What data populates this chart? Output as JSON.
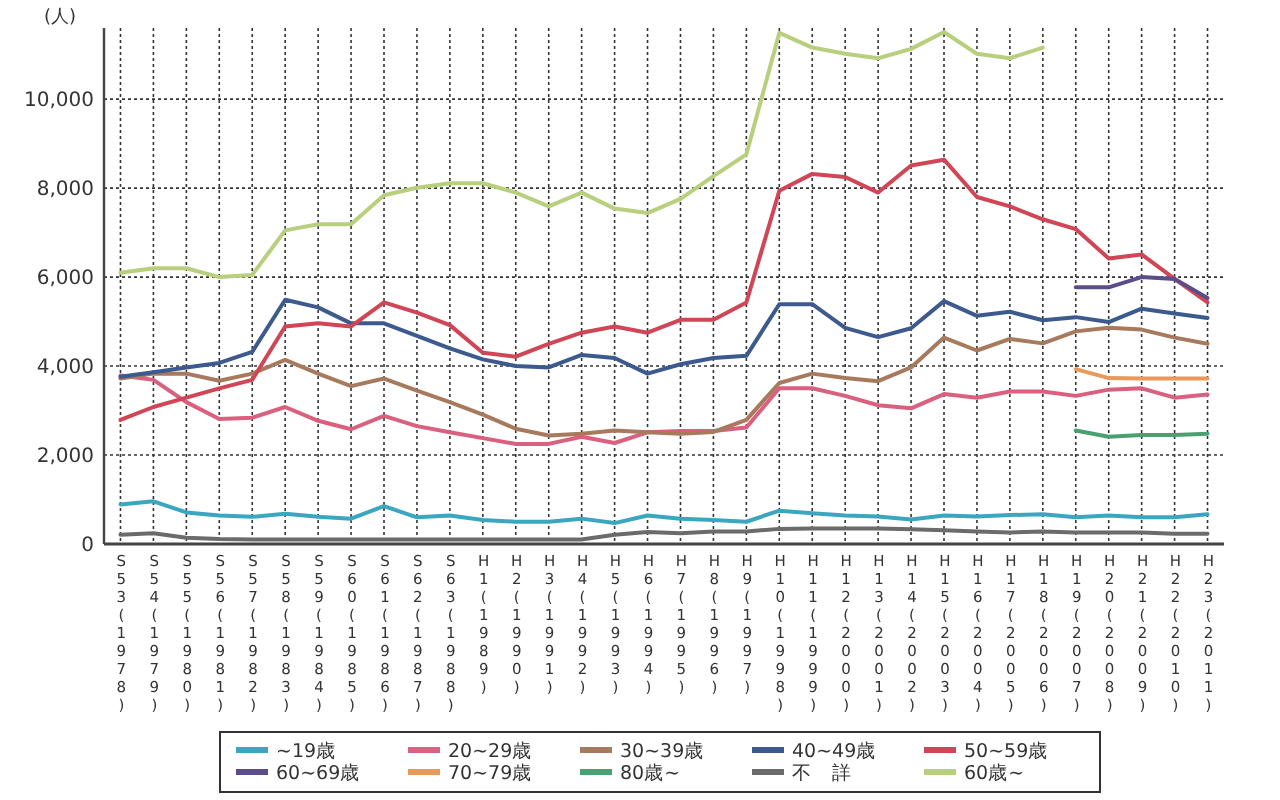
{
  "chart_data": {
    "type": "line",
    "ylabel": "(人)",
    "categories": [
      "S53(1978)",
      "S54(1979)",
      "S55(1980)",
      "S56(1981)",
      "S57(1982)",
      "S58(1983)",
      "S59(1984)",
      "S60(1985)",
      "S61(1986)",
      "S62(1987)",
      "S63(1988)",
      "H1(1989)",
      "H2(1990)",
      "H3(1991)",
      "H4(1992)",
      "H5(1993)",
      "H6(1994)",
      "H7(1995)",
      "H8(1996)",
      "H9(1997)",
      "H10(1998)",
      "H11(1999)",
      "H12(2000)",
      "H13(2001)",
      "H14(2002)",
      "H15(2003)",
      "H16(2004)",
      "H17(2005)",
      "H18(2006)",
      "H19(2007)",
      "H20(2008)",
      "H21(2009)",
      "H22(2010)",
      "H23(2011)"
    ],
    "ylim": [
      0,
      11600
    ],
    "yticks": [
      0,
      {
        "value": 2000,
        "label": "2,000"
      },
      {
        "value": 4000,
        "label": "4,000"
      },
      {
        "value": 6000,
        "label": "6,000"
      },
      {
        "value": 8000,
        "label": "8,000"
      },
      {
        "value": 10000,
        "label": "10,000"
      }
    ],
    "grid": true,
    "legend": "bottom",
    "line_style": "solid",
    "marker": "none",
    "series": [
      {
        "name": "~19歳",
        "color": "#3aa6c0",
        "values": [
          890,
          960,
          710,
          640,
          610,
          680,
          610,
          570,
          850,
          600,
          640,
          540,
          500,
          500,
          570,
          470,
          640,
          570,
          540,
          500,
          750,
          690,
          640,
          620,
          550,
          640,
          620,
          650,
          670,
          600,
          640,
          600,
          600,
          670
        ]
      },
      {
        "name": "20~29歳",
        "color": "#d9607f",
        "values": [
          3790,
          3690,
          3190,
          2810,
          2840,
          3080,
          2770,
          2580,
          2880,
          2650,
          2510,
          2380,
          2250,
          2250,
          2410,
          2270,
          2510,
          2540,
          2540,
          2620,
          3500,
          3500,
          3330,
          3120,
          3050,
          3370,
          3290,
          3430,
          3430,
          3330,
          3470,
          3500,
          3290,
          3360
        ]
      },
      {
        "name": "30~39歳",
        "color": "#a77a5e",
        "values": [
          3720,
          3830,
          3830,
          3670,
          3830,
          4140,
          3830,
          3550,
          3720,
          3450,
          3190,
          2910,
          2590,
          2440,
          2480,
          2550,
          2510,
          2480,
          2520,
          2790,
          3620,
          3830,
          3730,
          3660,
          3970,
          4640,
          4350,
          4610,
          4510,
          4780,
          4860,
          4820,
          4640,
          4500
        ]
      },
      {
        "name": "40~49歳",
        "color": "#3d5a8f",
        "values": [
          3760,
          3860,
          3970,
          4070,
          4320,
          5490,
          5320,
          4960,
          4960,
          4680,
          4400,
          4150,
          4000,
          3970,
          4250,
          4180,
          3830,
          4040,
          4180,
          4230,
          5390,
          5390,
          4860,
          4650,
          4850,
          5460,
          5130,
          5220,
          5030,
          5100,
          4990,
          5290,
          5180,
          5080
        ]
      },
      {
        "name": "50~59歳",
        "color": "#d04656",
        "values": [
          2790,
          3080,
          3290,
          3500,
          3690,
          4890,
          4960,
          4890,
          5430,
          5200,
          4920,
          4300,
          4210,
          4500,
          4750,
          4890,
          4750,
          5040,
          5040,
          5430,
          7940,
          8320,
          8250,
          7900,
          8510,
          8640,
          7800,
          7590,
          7300,
          7080,
          6420,
          6510,
          5960,
          5430
        ]
      },
      {
        "name": "60~69歳",
        "color": "#5c4d8a",
        "values": [
          null,
          null,
          null,
          null,
          null,
          null,
          null,
          null,
          null,
          null,
          null,
          null,
          null,
          null,
          null,
          null,
          null,
          null,
          null,
          null,
          null,
          null,
          null,
          null,
          null,
          null,
          null,
          null,
          null,
          5770,
          5770,
          6000,
          5960,
          5530
        ]
      },
      {
        "name": "70~79歳",
        "color": "#e89a5a",
        "values": [
          null,
          null,
          null,
          null,
          null,
          null,
          null,
          null,
          null,
          null,
          null,
          null,
          null,
          null,
          null,
          null,
          null,
          null,
          null,
          null,
          null,
          null,
          null,
          null,
          null,
          null,
          null,
          null,
          null,
          3930,
          3730,
          3720,
          3720,
          3720
        ]
      },
      {
        "name": "80歳~",
        "color": "#4aa070",
        "values": [
          null,
          null,
          null,
          null,
          null,
          null,
          null,
          null,
          null,
          null,
          null,
          null,
          null,
          null,
          null,
          null,
          null,
          null,
          null,
          null,
          null,
          null,
          null,
          null,
          null,
          null,
          null,
          null,
          null,
          2550,
          2410,
          2450,
          2450,
          2480
        ]
      },
      {
        "name": "不　詳",
        "color": "#6b6b6b",
        "values": [
          210,
          240,
          140,
          110,
          100,
          100,
          100,
          100,
          100,
          100,
          100,
          100,
          100,
          100,
          100,
          210,
          270,
          240,
          280,
          280,
          340,
          350,
          350,
          350,
          330,
          310,
          280,
          260,
          280,
          260,
          260,
          260,
          230,
          230
        ]
      },
      {
        "name": "60歳~",
        "color": "#b8cf7d",
        "values": [
          6100,
          6200,
          6200,
          6000,
          6050,
          7050,
          7190,
          7190,
          7840,
          8010,
          8110,
          8110,
          7900,
          7590,
          7900,
          7540,
          7440,
          7760,
          8270,
          8760,
          11490,
          11160,
          11020,
          10920,
          11130,
          11510,
          11020,
          10920,
          11160,
          null,
          null,
          null,
          null,
          null
        ]
      }
    ]
  }
}
